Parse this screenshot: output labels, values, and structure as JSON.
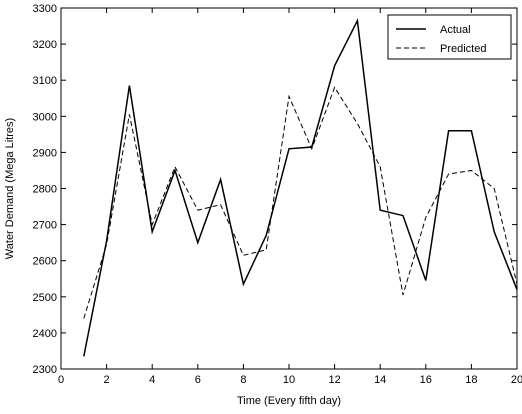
{
  "chart_data": {
    "type": "line",
    "title": "",
    "xlabel": "Time (Every fifth day)",
    "ylabel": "Water Demand (Mega Litres)",
    "xlim": [
      0,
      20
    ],
    "ylim": [
      2300,
      3300
    ],
    "xticks": [
      0,
      2,
      4,
      6,
      8,
      10,
      12,
      14,
      16,
      18,
      20
    ],
    "yticks": [
      2300,
      2400,
      2500,
      2600,
      2700,
      2800,
      2900,
      3000,
      3100,
      3200,
      3300
    ],
    "grid": false,
    "legend_position": "top-right",
    "x": [
      1,
      2,
      3,
      4,
      5,
      6,
      7,
      8,
      9,
      10,
      11,
      12,
      13,
      14,
      15,
      16,
      17,
      18,
      19,
      20
    ],
    "series": [
      {
        "name": "Actual",
        "style": "solid",
        "color": "#000000",
        "values": [
          2335,
          2655,
          3085,
          2680,
          2850,
          2650,
          2825,
          2535,
          2670,
          2910,
          2915,
          3140,
          3265,
          2740,
          2725,
          2545,
          2960,
          2960,
          2680,
          2520
        ]
      },
      {
        "name": "Predicted",
        "style": "dashed",
        "color": "#000000",
        "values": [
          2440,
          2645,
          3005,
          2700,
          2860,
          2740,
          2755,
          2615,
          2630,
          3055,
          2910,
          3080,
          2980,
          2860,
          2505,
          2720,
          2840,
          2850,
          2800,
          2535
        ]
      }
    ]
  }
}
